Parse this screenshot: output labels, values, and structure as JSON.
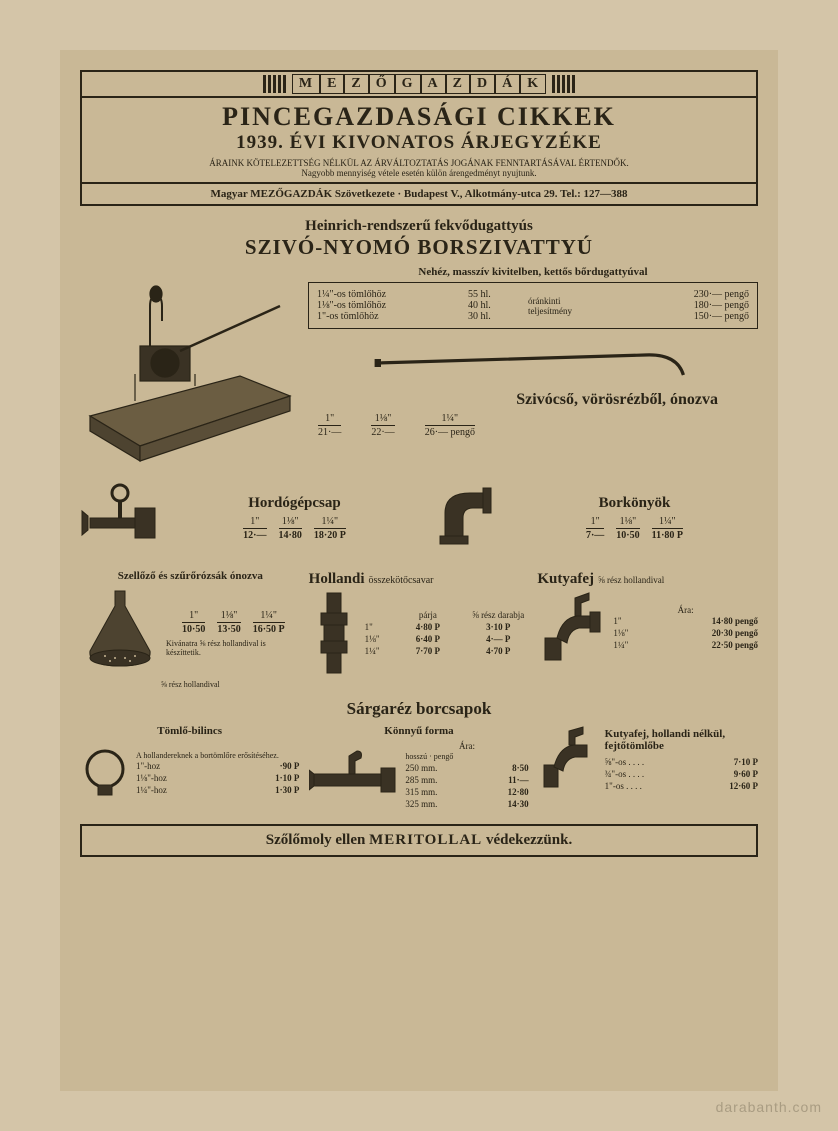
{
  "colors": {
    "paper": "#c9b896",
    "ink": "#2a2417",
    "bg": "#d4c5a8"
  },
  "header": {
    "brand_letters": [
      "M",
      "E",
      "Z",
      "Ő",
      "G",
      "A",
      "Z",
      "D",
      "Á",
      "K"
    ],
    "title_main": "PINCEGAZDASÁGI CIKKEK",
    "title_sub": "1939. ÉVI KIVONATOS ÁRJEGYZÉKE",
    "note1": "ÁRAINK KÖTELEZETTSÉG NÉLKÜL AZ ÁRVÁLTOZTATÁS JOGÁNAK FENNTARTÁSÁVAL ÉRTENDŐK.",
    "note2": "Nagyobb mennyiség vétele esetén külön árengedményt nyujtunk.",
    "company": "Magyar MEZŐGAZDÁK Szövetkezete · Budapest V., Alkotmány-utca 29. Tel.: 127—388"
  },
  "pump": {
    "line1": "Heinrich-rendszerű fekvődugattyús",
    "line2": "SZIVÓ-NYOMÓ BORSZIVATTYÚ",
    "caption": "Nehéz, masszív kivitelben, kettős bőrdugattyúval",
    "rows": [
      {
        "hose": "1¼\"-os tömlőhöz",
        "cap": "55 hl.",
        "mid": "óránkinti teljesítmény",
        "price": "230·— pengő"
      },
      {
        "hose": "1⅛\"-os tömlőhöz",
        "cap": "40 hl.",
        "mid": "",
        "price": "180·— pengő"
      },
      {
        "hose": "1\"-os tömlőhöz",
        "cap": "30 hl.",
        "mid": "",
        "price": "150·— pengő"
      }
    ]
  },
  "pipe": {
    "title": "Szivócső, vörösrézből, ónozva",
    "sizes": [
      {
        "sz": "1\"",
        "pr": "21·—"
      },
      {
        "sz": "1⅛\"",
        "pr": "22·—"
      },
      {
        "sz": "1¼\"",
        "pr": "26·— pengő"
      }
    ]
  },
  "hordogepcsap": {
    "title": "Hordógépcsap",
    "sizes": [
      {
        "sz": "1\"",
        "pr": "12·—"
      },
      {
        "sz": "1⅛\"",
        "pr": "14·80"
      },
      {
        "sz": "1¼\"",
        "pr": "18·20 P"
      }
    ]
  },
  "borkonyok": {
    "title": "Borkönyök",
    "sizes": [
      {
        "sz": "1\"",
        "pr": "7·—"
      },
      {
        "sz": "1⅛\"",
        "pr": "10·50"
      },
      {
        "sz": "1¼\"",
        "pr": "11·80 P"
      }
    ]
  },
  "szellozo": {
    "title": "Szellőző és szűrőrózsák ónozva",
    "sizes": [
      {
        "sz": "1\"",
        "pr": "10·50"
      },
      {
        "sz": "1⅛\"",
        "pr": "13·50"
      },
      {
        "sz": "1¼\"",
        "pr": "16·50 P"
      }
    ],
    "note": "Kivánatra ⅝ rész hollandival is készíttetik.",
    "caption": "⅝ rész hollandival"
  },
  "hollandi": {
    "title": "Hollandi",
    "subtitle": "összekötőcsavar",
    "cols": [
      "párja",
      "⅝ rész darabja"
    ],
    "rows": [
      {
        "sz": "1\"",
        "a": "4·80 P",
        "b": "3·10 P"
      },
      {
        "sz": "1⅛\"",
        "a": "6·40 P",
        "b": "4·— P"
      },
      {
        "sz": "1¼\"",
        "a": "7·70 P",
        "b": "4·70 P"
      }
    ]
  },
  "kutyafej": {
    "title": "Kutyafej",
    "subtitle": "⅝ rész hollandival",
    "header": "Ára:",
    "rows": [
      {
        "sz": "1\"",
        "pr": "14·80 pengő"
      },
      {
        "sz": "1⅛\"",
        "pr": "20·30 pengő"
      },
      {
        "sz": "1¼\"",
        "pr": "22·50 pengő"
      }
    ]
  },
  "sargarez_title": "Sárgaréz borcsapok",
  "tomlo": {
    "title": "Tömlő-bilincs",
    "note": "A hollandereknek a bortömlőre erősítéséhez.",
    "rows": [
      {
        "sz": "1\"-hoz",
        "pr": "·90 P"
      },
      {
        "sz": "1⅛\"-hoz",
        "pr": "1·10 P"
      },
      {
        "sz": "1¼\"-hoz",
        "pr": "1·30 P"
      }
    ]
  },
  "konnyu": {
    "title": "Könnyű forma",
    "header": "Ára:",
    "sub": "hosszú · pengő",
    "rows": [
      {
        "sz": "250 mm.",
        "pr": "8·50"
      },
      {
        "sz": "285 mm.",
        "pr": "11·—"
      },
      {
        "sz": "315 mm.",
        "pr": "12·80"
      },
      {
        "sz": "325 mm.",
        "pr": "14·30"
      }
    ]
  },
  "kutyafej2": {
    "title": "Kutyafej, hollandi nélkül, fejtőtömlőbe",
    "rows": [
      {
        "sz": "⅝\"-os",
        "pr": "7·10 P"
      },
      {
        "sz": "¾\"-os",
        "pr": "9·60 P"
      },
      {
        "sz": "1\"-os",
        "pr": "12·60 P"
      }
    ]
  },
  "footer": {
    "pre": "Szőlőmoly ellen ",
    "em": "MERITOLLAL",
    "post": " védekezzünk."
  },
  "watermark": "darabanth.com"
}
